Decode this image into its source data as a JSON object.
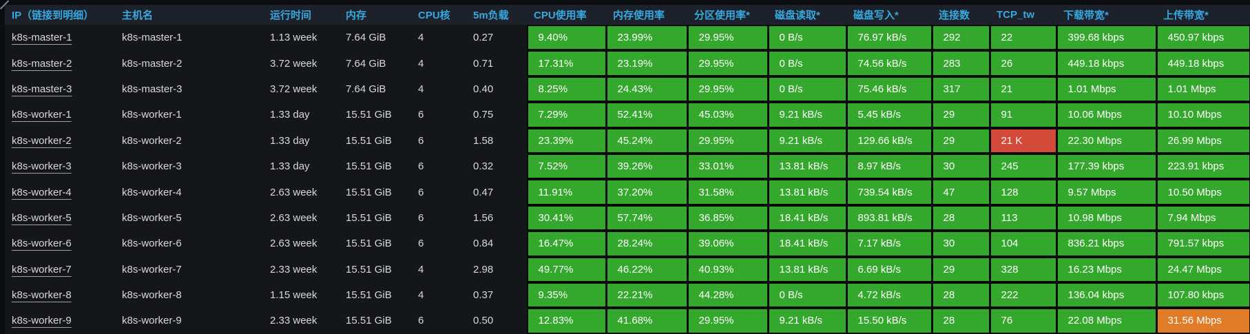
{
  "colors": {
    "green": "#34a82c",
    "red": "#d44a3a",
    "orange": "#e07b28",
    "header_text": "#37a8e0"
  },
  "table": {
    "columns": [
      {
        "key": "ip",
        "label": "IP（链接到明细）",
        "colored": false
      },
      {
        "key": "hostname",
        "label": "主机名",
        "colored": false
      },
      {
        "key": "uptime",
        "label": "运行时间",
        "colored": false
      },
      {
        "key": "memory",
        "label": "内存",
        "colored": false
      },
      {
        "key": "cores",
        "label": "CPU核",
        "colored": false
      },
      {
        "key": "load5m",
        "label": "5m负载",
        "colored": false
      },
      {
        "key": "cpu_usage",
        "label": "CPU使用率",
        "colored": true
      },
      {
        "key": "mem_usage",
        "label": "内存使用率",
        "colored": true
      },
      {
        "key": "part_usage",
        "label": "分区使用率*",
        "colored": true
      },
      {
        "key": "disk_read",
        "label": "磁盘读取*",
        "colored": true
      },
      {
        "key": "disk_write",
        "label": "磁盘写入*",
        "colored": true
      },
      {
        "key": "connections",
        "label": "连接数",
        "colored": true
      },
      {
        "key": "tcp_tw",
        "label": "TCP_tw",
        "colored": true
      },
      {
        "key": "down_bw",
        "label": "下载带宽*",
        "colored": true
      },
      {
        "key": "up_bw",
        "label": "上传带宽*",
        "colored": true
      }
    ],
    "rows": [
      {
        "ip": "k8s-master-1",
        "hostname": "k8s-master-1",
        "uptime": "1.13 week",
        "memory": "7.64 GiB",
        "cores": "4",
        "load5m": "0.27",
        "cpu_usage": "9.40%",
        "mem_usage": "23.99%",
        "part_usage": "29.95%",
        "disk_read": "0 B/s",
        "disk_write": "76.97 kB/s",
        "connections": "292",
        "tcp_tw": "22",
        "down_bw": "399.68 kbps",
        "up_bw": "450.97 kbps"
      },
      {
        "ip": "k8s-master-2",
        "hostname": "k8s-master-2",
        "uptime": "3.72 week",
        "memory": "7.64 GiB",
        "cores": "4",
        "load5m": "0.71",
        "cpu_usage": "17.31%",
        "mem_usage": "23.19%",
        "part_usage": "29.95%",
        "disk_read": "0 B/s",
        "disk_write": "74.56 kB/s",
        "connections": "283",
        "tcp_tw": "26",
        "down_bw": "449.18 kbps",
        "up_bw": "449.18 kbps"
      },
      {
        "ip": "k8s-master-3",
        "hostname": "k8s-master-3",
        "uptime": "3.72 week",
        "memory": "7.64 GiB",
        "cores": "4",
        "load5m": "0.40",
        "cpu_usage": "8.25%",
        "mem_usage": "24.43%",
        "part_usage": "29.95%",
        "disk_read": "0 B/s",
        "disk_write": "75.46 kB/s",
        "connections": "317",
        "tcp_tw": "21",
        "down_bw": "1.01 Mbps",
        "up_bw": "1.01 Mbps"
      },
      {
        "ip": "k8s-worker-1",
        "hostname": "k8s-worker-1",
        "uptime": "1.33 day",
        "memory": "15.51 GiB",
        "cores": "6",
        "load5m": "0.75",
        "cpu_usage": "7.29%",
        "mem_usage": "52.41%",
        "part_usage": "45.03%",
        "disk_read": "9.21 kB/s",
        "disk_write": "5.45 kB/s",
        "connections": "29",
        "tcp_tw": "91",
        "down_bw": "10.06 Mbps",
        "up_bw": "10.10 Mbps"
      },
      {
        "ip": "k8s-worker-2",
        "hostname": "k8s-worker-2",
        "uptime": "1.33 day",
        "memory": "15.51 GiB",
        "cores": "6",
        "load5m": "1.58",
        "cpu_usage": "23.39%",
        "mem_usage": "45.24%",
        "part_usage": "29.95%",
        "disk_read": "9.21 kB/s",
        "disk_write": "129.66 kB/s",
        "connections": "29",
        "tcp_tw": "21 K",
        "down_bw": "22.30 Mbps",
        "up_bw": "26.99 Mbps"
      },
      {
        "ip": "k8s-worker-3",
        "hostname": "k8s-worker-3",
        "uptime": "1.33 day",
        "memory": "15.51 GiB",
        "cores": "6",
        "load5m": "0.32",
        "cpu_usage": "7.52%",
        "mem_usage": "39.26%",
        "part_usage": "33.01%",
        "disk_read": "13.81 kB/s",
        "disk_write": "8.97 kB/s",
        "connections": "30",
        "tcp_tw": "245",
        "down_bw": "177.39 kbps",
        "up_bw": "223.91 kbps"
      },
      {
        "ip": "k8s-worker-4",
        "hostname": "k8s-worker-4",
        "uptime": "2.63 week",
        "memory": "15.51 GiB",
        "cores": "6",
        "load5m": "0.47",
        "cpu_usage": "11.91%",
        "mem_usage": "37.20%",
        "part_usage": "31.58%",
        "disk_read": "13.81 kB/s",
        "disk_write": "739.54 kB/s",
        "connections": "47",
        "tcp_tw": "128",
        "down_bw": "9.57 Mbps",
        "up_bw": "10.50 Mbps"
      },
      {
        "ip": "k8s-worker-5",
        "hostname": "k8s-worker-5",
        "uptime": "2.63 week",
        "memory": "15.51 GiB",
        "cores": "6",
        "load5m": "1.56",
        "cpu_usage": "30.41%",
        "mem_usage": "57.74%",
        "part_usage": "36.85%",
        "disk_read": "18.41 kB/s",
        "disk_write": "893.81 kB/s",
        "connections": "28",
        "tcp_tw": "113",
        "down_bw": "10.98 Mbps",
        "up_bw": "7.94 Mbps"
      },
      {
        "ip": "k8s-worker-6",
        "hostname": "k8s-worker-6",
        "uptime": "2.63 week",
        "memory": "15.51 GiB",
        "cores": "6",
        "load5m": "0.84",
        "cpu_usage": "16.47%",
        "mem_usage": "28.24%",
        "part_usage": "39.06%",
        "disk_read": "18.41 kB/s",
        "disk_write": "7.17 kB/s",
        "connections": "30",
        "tcp_tw": "104",
        "down_bw": "836.21 kbps",
        "up_bw": "791.57 kbps"
      },
      {
        "ip": "k8s-worker-7",
        "hostname": "k8s-worker-7",
        "uptime": "2.33 week",
        "memory": "15.51 GiB",
        "cores": "4",
        "load5m": "2.98",
        "cpu_usage": "49.77%",
        "mem_usage": "46.22%",
        "part_usage": "40.93%",
        "disk_read": "13.81 kB/s",
        "disk_write": "6.69 kB/s",
        "connections": "29",
        "tcp_tw": "328",
        "down_bw": "16.23 Mbps",
        "up_bw": "24.47 Mbps"
      },
      {
        "ip": "k8s-worker-8",
        "hostname": "k8s-worker-8",
        "uptime": "1.15 week",
        "memory": "15.51 GiB",
        "cores": "4",
        "load5m": "0.37",
        "cpu_usage": "9.35%",
        "mem_usage": "22.21%",
        "part_usage": "44.28%",
        "disk_read": "0 B/s",
        "disk_write": "4.72 kB/s",
        "connections": "28",
        "tcp_tw": "222",
        "down_bw": "136.04 kbps",
        "up_bw": "107.80 kbps"
      },
      {
        "ip": "k8s-worker-9",
        "hostname": "k8s-worker-9",
        "uptime": "2.33 week",
        "memory": "15.51 GiB",
        "cores": "6",
        "load5m": "0.50",
        "cpu_usage": "12.83%",
        "mem_usage": "41.68%",
        "part_usage": "29.95%",
        "disk_read": "9.21 kB/s",
        "disk_write": "15.50 kB/s",
        "connections": "28",
        "tcp_tw": "76",
        "down_bw": "22.08 Mbps",
        "up_bw": "31.56 Mbps"
      }
    ]
  },
  "highlights": [
    {
      "row_index": 4,
      "column": "tcp_tw",
      "color": "red"
    },
    {
      "row_index": 11,
      "column": "up_bw",
      "color": "orange"
    }
  ]
}
